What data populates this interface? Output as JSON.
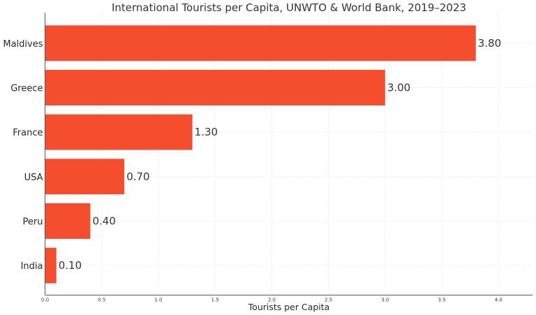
{
  "chart_data": {
    "type": "bar",
    "orientation": "horizontal",
    "title": "International Tourists per Capita, UNWTO & World Bank, 2019–2023",
    "xlabel": "Tourists per Capita",
    "ylabel": "",
    "categories": [
      "Maldives",
      "Greece",
      "France",
      "USA",
      "Peru",
      "India"
    ],
    "values": [
      3.8,
      3.0,
      1.3,
      0.7,
      0.4,
      0.1
    ],
    "value_labels": [
      "3.80",
      "3.00",
      "1.30",
      "0.70",
      "0.40",
      "0.10"
    ],
    "xlim": [
      0,
      4.3
    ],
    "xticks": [
      "0.0",
      "0.5",
      "1.0",
      "1.5",
      "2.0",
      "2.5",
      "3.0",
      "3.5",
      "4.0"
    ],
    "grid": true,
    "bar_color": "#f44e2e"
  }
}
